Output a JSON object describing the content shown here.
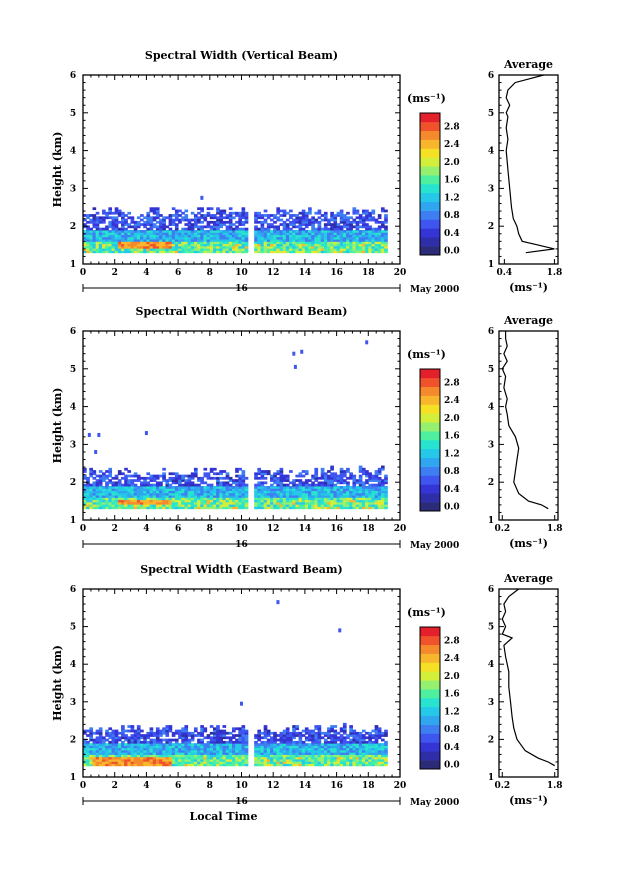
{
  "chart_data": [
    {
      "type": "heatmap",
      "title": "Spectral Width (Vertical Beam)",
      "ylabel": "Height (km)",
      "xlabel": "",
      "xlim": [
        0,
        20
      ],
      "ylim": [
        1,
        6
      ],
      "x_ticks": [
        "0",
        "2",
        "4",
        "6",
        "8",
        "10",
        "12",
        "14",
        "16",
        "18",
        "20"
      ],
      "y_ticks": [
        "1",
        "2",
        "3",
        "4",
        "5",
        "6"
      ],
      "day_label": "16",
      "date_label": "May 2000",
      "data_gap_hours": [
        10.3,
        10.7
      ],
      "data_end_hour": 19.0,
      "layer_top_km": 2.5,
      "outliers": [
        {
          "x": 7.5,
          "y": 2.75
        }
      ],
      "strong_band": {
        "y": [
          1.4,
          1.55
        ],
        "x": [
          2,
          5.5
        ]
      },
      "colorbar": {
        "unit": "(ms⁻¹)",
        "ticks": [
          "0.0",
          "0.4",
          "0.8",
          "1.2",
          "1.6",
          "2.0",
          "2.4",
          "2.8"
        ]
      },
      "profile": {
        "title": "Average",
        "xlabel": "(ms⁻¹)",
        "x_ticks": [
          "0.4",
          "1.8"
        ],
        "xlim": [
          0.25,
          1.9
        ],
        "y": [
          1.3,
          1.4,
          1.5,
          1.6,
          1.8,
          2.0,
          2.2,
          2.5,
          3.0,
          3.5,
          4.0,
          4.3,
          4.6,
          4.9,
          5.0,
          5.2,
          5.4,
          5.6,
          5.8,
          6.0
        ],
        "x": [
          1.0,
          1.8,
          1.35,
          0.9,
          0.8,
          0.75,
          0.65,
          0.6,
          0.55,
          0.5,
          0.45,
          0.5,
          0.45,
          0.5,
          0.45,
          0.55,
          0.45,
          0.5,
          0.7,
          1.5
        ]
      }
    },
    {
      "type": "heatmap",
      "title": "Spectral Width (Northward Beam)",
      "ylabel": "Height (km)",
      "xlabel": "",
      "xlim": [
        0,
        20
      ],
      "ylim": [
        1,
        6
      ],
      "x_ticks": [
        "0",
        "2",
        "4",
        "6",
        "8",
        "10",
        "12",
        "14",
        "16",
        "18",
        "20"
      ],
      "y_ticks": [
        "1",
        "2",
        "3",
        "4",
        "5",
        "6"
      ],
      "day_label": "16",
      "date_label": "May 2000",
      "data_gap_hours": [
        10.3,
        10.7
      ],
      "data_end_hour": 19.0,
      "layer_top_km": 2.4,
      "outliers": [
        {
          "x": 0.4,
          "y": 3.25
        },
        {
          "x": 1.0,
          "y": 3.25
        },
        {
          "x": 0.8,
          "y": 2.8
        },
        {
          "x": 4.0,
          "y": 3.3
        },
        {
          "x": 13.3,
          "y": 5.4
        },
        {
          "x": 13.8,
          "y": 5.45
        },
        {
          "x": 13.4,
          "y": 5.05
        },
        {
          "x": 17.9,
          "y": 5.7
        }
      ],
      "strong_band": {
        "y": [
          1.4,
          1.5
        ],
        "x": [
          2,
          5.5
        ]
      },
      "colorbar": {
        "unit": "(ms⁻¹)",
        "ticks": [
          "0.0",
          "0.4",
          "0.8",
          "1.2",
          "1.6",
          "2.0",
          "2.4",
          "2.8"
        ]
      },
      "profile": {
        "title": "Average",
        "xlabel": "(ms⁻¹)",
        "x_ticks": [
          "0.2",
          "1.8"
        ],
        "xlim": [
          0.1,
          1.9
        ],
        "y": [
          1.3,
          1.4,
          1.5,
          1.7,
          2.0,
          2.3,
          2.6,
          2.9,
          3.2,
          3.5,
          3.8,
          4.0,
          4.2,
          4.5,
          4.8,
          5.0,
          5.2,
          5.4,
          5.6,
          5.8,
          6.0
        ],
        "x": [
          1.6,
          1.4,
          1.0,
          0.7,
          0.55,
          0.6,
          0.65,
          0.7,
          0.6,
          0.4,
          0.35,
          0.3,
          0.35,
          0.25,
          0.3,
          0.2,
          0.35,
          0.25,
          0.35,
          0.3,
          0.3
        ]
      }
    },
    {
      "type": "heatmap",
      "title": "Spectral Width (Eastward Beam)",
      "ylabel": "Height (km)",
      "xlabel": "Local Time",
      "xlim": [
        0,
        20
      ],
      "ylim": [
        1,
        6
      ],
      "x_ticks": [
        "0",
        "2",
        "4",
        "6",
        "8",
        "10",
        "12",
        "14",
        "16",
        "18",
        "20"
      ],
      "y_ticks": [
        "1",
        "2",
        "3",
        "4",
        "5",
        "6"
      ],
      "day_label": "16",
      "date_label": "May 2000",
      "data_gap_hours": [
        10.3,
        10.7
      ],
      "data_end_hour": 19.0,
      "layer_top_km": 2.4,
      "outliers": [
        {
          "x": 10.0,
          "y": 2.95
        },
        {
          "x": 12.3,
          "y": 5.65
        },
        {
          "x": 16.2,
          "y": 4.9
        }
      ],
      "strong_band": {
        "y": [
          1.3,
          1.5
        ],
        "x": [
          0.5,
          5.5
        ]
      },
      "colorbar": {
        "unit": "(ms⁻¹)",
        "ticks": [
          "0.0",
          "0.4",
          "0.8",
          "1.2",
          "1.6",
          "2.0",
          "2.4",
          "2.8"
        ]
      },
      "profile": {
        "title": "Average",
        "xlabel": "(ms⁻¹)",
        "x_ticks": [
          "0.2",
          "1.8"
        ],
        "xlim": [
          0.1,
          1.9
        ],
        "y": [
          1.3,
          1.4,
          1.5,
          1.7,
          2.0,
          2.3,
          2.6,
          3.0,
          3.4,
          3.8,
          4.2,
          4.5,
          4.7,
          4.8,
          5.0,
          5.2,
          5.4,
          5.6,
          5.8,
          6.0
        ],
        "x": [
          1.8,
          1.6,
          1.3,
          0.9,
          0.65,
          0.55,
          0.5,
          0.45,
          0.4,
          0.4,
          0.3,
          0.25,
          0.5,
          0.2,
          0.3,
          0.2,
          0.3,
          0.25,
          0.4,
          0.7
        ]
      }
    }
  ],
  "colors": [
    "#2b2b78",
    "#2e2ea8",
    "#3535d6",
    "#3f55f0",
    "#3d7ef2",
    "#2fa6ef",
    "#25c8e8",
    "#27e3d0",
    "#4ef0a0",
    "#95f070",
    "#d4ef3a",
    "#f5e026",
    "#f7b62c",
    "#f58a2c",
    "#f0532c",
    "#e3202c"
  ]
}
